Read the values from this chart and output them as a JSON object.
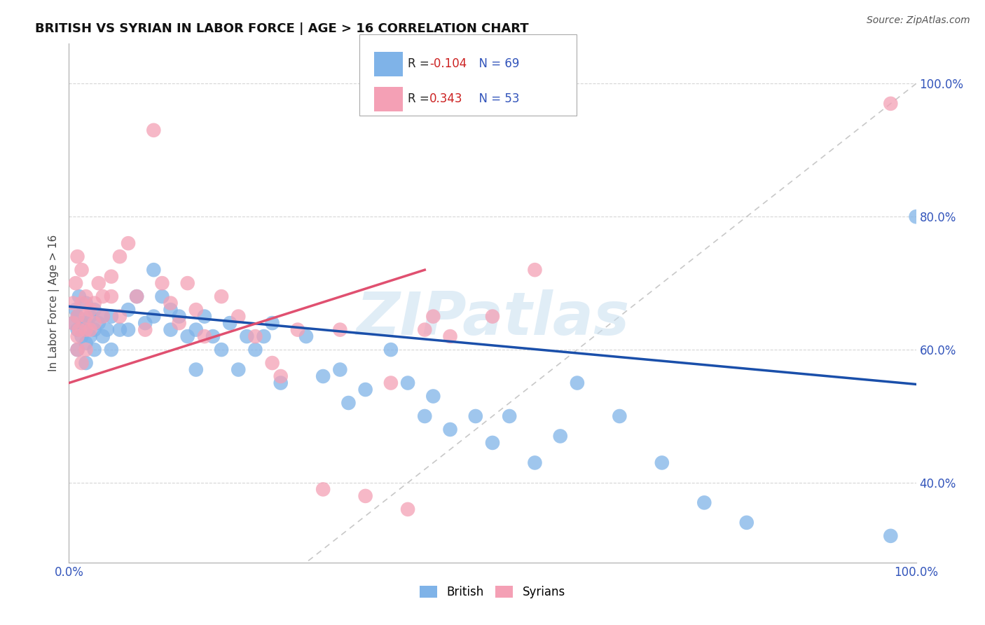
{
  "title": "BRITISH VS SYRIAN IN LABOR FORCE | AGE > 16 CORRELATION CHART",
  "source_text": "Source: ZipAtlas.com",
  "ylabel": "In Labor Force | Age > 16",
  "xlim": [
    0.0,
    1.0
  ],
  "ylim": [
    0.28,
    1.06
  ],
  "yticks": [
    0.4,
    0.6,
    0.8,
    1.0
  ],
  "ytick_labels": [
    "40.0%",
    "60.0%",
    "80.0%",
    "100.0%"
  ],
  "xtick_labels": [
    "0.0%",
    "100.0%"
  ],
  "legend_R_british": "-0.104",
  "legend_N_british": "69",
  "legend_R_syrian": "0.343",
  "legend_N_syrian": "53",
  "british_color": "#7fb3e8",
  "syrian_color": "#f4a0b5",
  "blue_line_color": "#1a4faa",
  "pink_line_color": "#e05070",
  "ref_line_color": "#c8c8c8",
  "watermark": "ZIPatlas",
  "blue_line_x0": 0.0,
  "blue_line_y0": 0.665,
  "blue_line_x1": 1.0,
  "blue_line_y1": 0.548,
  "pink_line_x0": 0.0,
  "pink_line_y0": 0.55,
  "pink_line_x1": 0.42,
  "pink_line_y1": 0.72,
  "british_x": [
    0.005,
    0.008,
    0.01,
    0.01,
    0.01,
    0.012,
    0.015,
    0.015,
    0.02,
    0.02,
    0.02,
    0.02,
    0.025,
    0.025,
    0.03,
    0.03,
    0.03,
    0.035,
    0.04,
    0.04,
    0.045,
    0.05,
    0.05,
    0.06,
    0.07,
    0.07,
    0.08,
    0.09,
    0.1,
    0.1,
    0.11,
    0.12,
    0.12,
    0.13,
    0.14,
    0.15,
    0.15,
    0.16,
    0.17,
    0.18,
    0.19,
    0.2,
    0.21,
    0.22,
    0.23,
    0.24,
    0.25,
    0.28,
    0.3,
    0.32,
    0.33,
    0.35,
    0.38,
    0.4,
    0.42,
    0.43,
    0.45,
    0.48,
    0.5,
    0.52,
    0.55,
    0.58,
    0.6,
    0.65,
    0.7,
    0.75,
    0.8,
    0.97,
    1.0
  ],
  "british_y": [
    0.64,
    0.66,
    0.63,
    0.65,
    0.6,
    0.68,
    0.64,
    0.62,
    0.67,
    0.64,
    0.61,
    0.58,
    0.65,
    0.62,
    0.66,
    0.63,
    0.6,
    0.64,
    0.65,
    0.62,
    0.63,
    0.65,
    0.6,
    0.63,
    0.66,
    0.63,
    0.68,
    0.64,
    0.72,
    0.65,
    0.68,
    0.66,
    0.63,
    0.65,
    0.62,
    0.63,
    0.57,
    0.65,
    0.62,
    0.6,
    0.64,
    0.57,
    0.62,
    0.6,
    0.62,
    0.64,
    0.55,
    0.62,
    0.56,
    0.57,
    0.52,
    0.54,
    0.6,
    0.55,
    0.5,
    0.53,
    0.48,
    0.5,
    0.46,
    0.5,
    0.43,
    0.47,
    0.55,
    0.5,
    0.43,
    0.37,
    0.34,
    0.32,
    0.8
  ],
  "syrian_x": [
    0.005,
    0.005,
    0.008,
    0.01,
    0.01,
    0.01,
    0.01,
    0.012,
    0.015,
    0.015,
    0.015,
    0.02,
    0.02,
    0.02,
    0.02,
    0.025,
    0.025,
    0.03,
    0.03,
    0.035,
    0.04,
    0.04,
    0.05,
    0.05,
    0.06,
    0.06,
    0.07,
    0.08,
    0.09,
    0.1,
    0.11,
    0.12,
    0.13,
    0.14,
    0.15,
    0.16,
    0.18,
    0.2,
    0.22,
    0.24,
    0.25,
    0.27,
    0.3,
    0.32,
    0.35,
    0.38,
    0.4,
    0.42,
    0.43,
    0.45,
    0.5,
    0.55,
    0.97
  ],
  "syrian_y": [
    0.64,
    0.67,
    0.7,
    0.62,
    0.65,
    0.6,
    0.74,
    0.63,
    0.67,
    0.72,
    0.58,
    0.65,
    0.63,
    0.6,
    0.68,
    0.66,
    0.63,
    0.67,
    0.64,
    0.7,
    0.65,
    0.68,
    0.71,
    0.68,
    0.74,
    0.65,
    0.76,
    0.68,
    0.63,
    0.93,
    0.7,
    0.67,
    0.64,
    0.7,
    0.66,
    0.62,
    0.68,
    0.65,
    0.62,
    0.58,
    0.56,
    0.63,
    0.39,
    0.63,
    0.38,
    0.55,
    0.36,
    0.63,
    0.65,
    0.62,
    0.65,
    0.72,
    0.97
  ]
}
